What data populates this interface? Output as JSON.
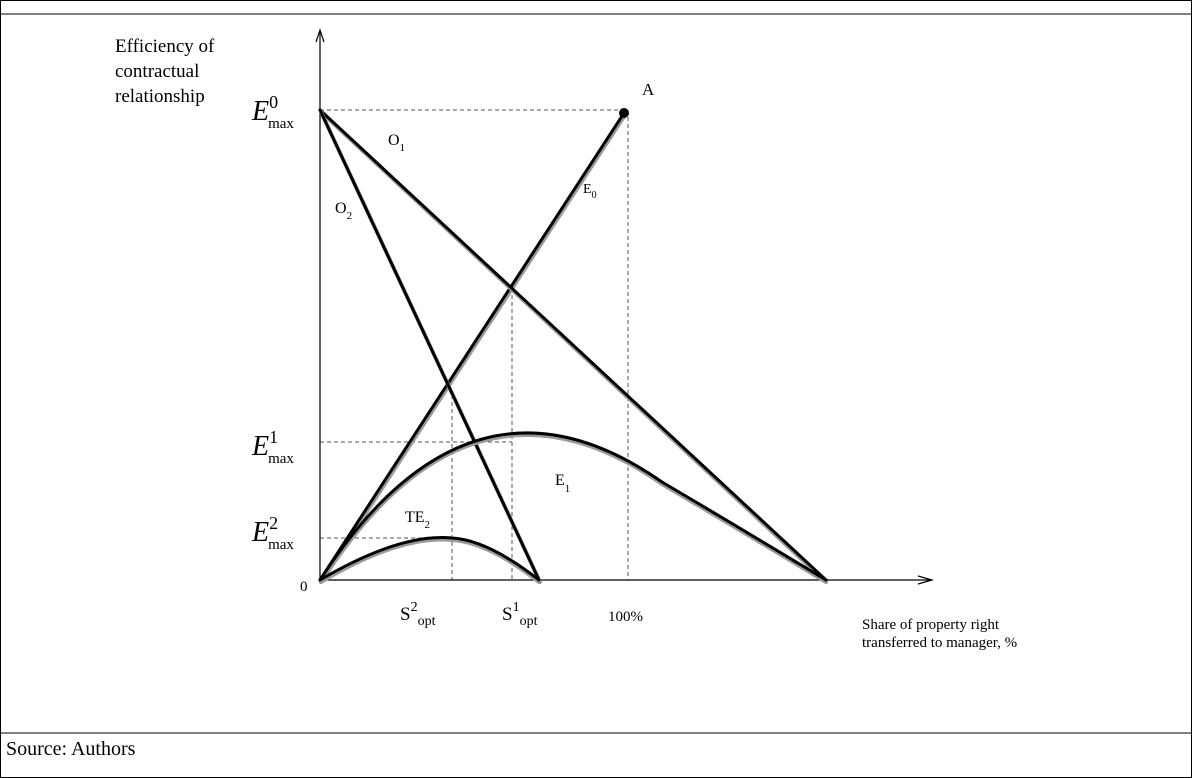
{
  "figure": {
    "y_axis_label_lines": [
      "Efficiency of",
      "contractual",
      "relationship"
    ],
    "x_axis_label_lines": [
      "Share of property right",
      "transferred to manager, %"
    ],
    "origin_label": "0",
    "y_markers": [
      {
        "base": "E",
        "sup": "0",
        "sub": "max"
      },
      {
        "base": "E",
        "sup": "1",
        "sub": "max"
      },
      {
        "base": "E",
        "sup": "2",
        "sub": "max"
      }
    ],
    "x_markers": [
      {
        "base": "S",
        "sup": "2",
        "sub": "opt"
      },
      {
        "base": "S",
        "sup": "1",
        "sub": "opt"
      },
      {
        "base": "100%"
      }
    ],
    "curve_labels": {
      "O1": {
        "base": "O",
        "sub": "1"
      },
      "O2": {
        "base": "O",
        "sub": "2"
      },
      "E0": {
        "base": "E",
        "sub": "0"
      },
      "E1": {
        "base": "E",
        "sub": "1"
      },
      "TE2": {
        "base": "TE",
        "sub": "2"
      },
      "A": "A"
    }
  },
  "source": "Source: Authors",
  "colors": {
    "line": "#000000",
    "shadow": "#9a9a9a"
  }
}
